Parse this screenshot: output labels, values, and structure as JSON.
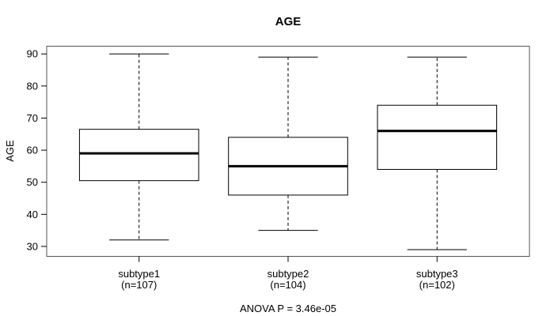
{
  "figure": {
    "background": "#ffffff"
  },
  "chart_data": {
    "type": "boxplot",
    "title": "AGE",
    "ylabel": "AGE",
    "xlabel": "",
    "annotation": "ANOVA P = 3.46e-05",
    "categories": [
      "subtype1",
      "subtype2",
      "subtype3"
    ],
    "category_sublabels": [
      "(n=107)",
      "(n=104)",
      "(n=102)"
    ],
    "sample_sizes": [
      107,
      104,
      102
    ],
    "yticks": [
      30,
      40,
      50,
      60,
      70,
      80,
      90
    ],
    "ylim": [
      26.9,
      92.4
    ],
    "xlim": [
      0.38,
      3.62
    ],
    "grid": false,
    "legend": "none",
    "box_width": 0.8,
    "cap_width": 0.4,
    "whisker_style": "dashed",
    "series": [
      {
        "name": "subtype1",
        "position": 1,
        "lower_whisker": 32,
        "q1": 50.5,
        "median": 59,
        "q3": 66.5,
        "upper_whisker": 90
      },
      {
        "name": "subtype2",
        "position": 2,
        "lower_whisker": 35,
        "q1": 46,
        "median": 55,
        "q3": 64,
        "upper_whisker": 89
      },
      {
        "name": "subtype3",
        "position": 3,
        "lower_whisker": 29,
        "q1": 54,
        "median": 66,
        "q3": 74,
        "upper_whisker": 89
      }
    ],
    "colors": {
      "line": "#000000",
      "median": "#000000",
      "frame": "#555555",
      "box_fill": "#ffffff",
      "background": "#ffffff",
      "text": "#000000"
    }
  }
}
